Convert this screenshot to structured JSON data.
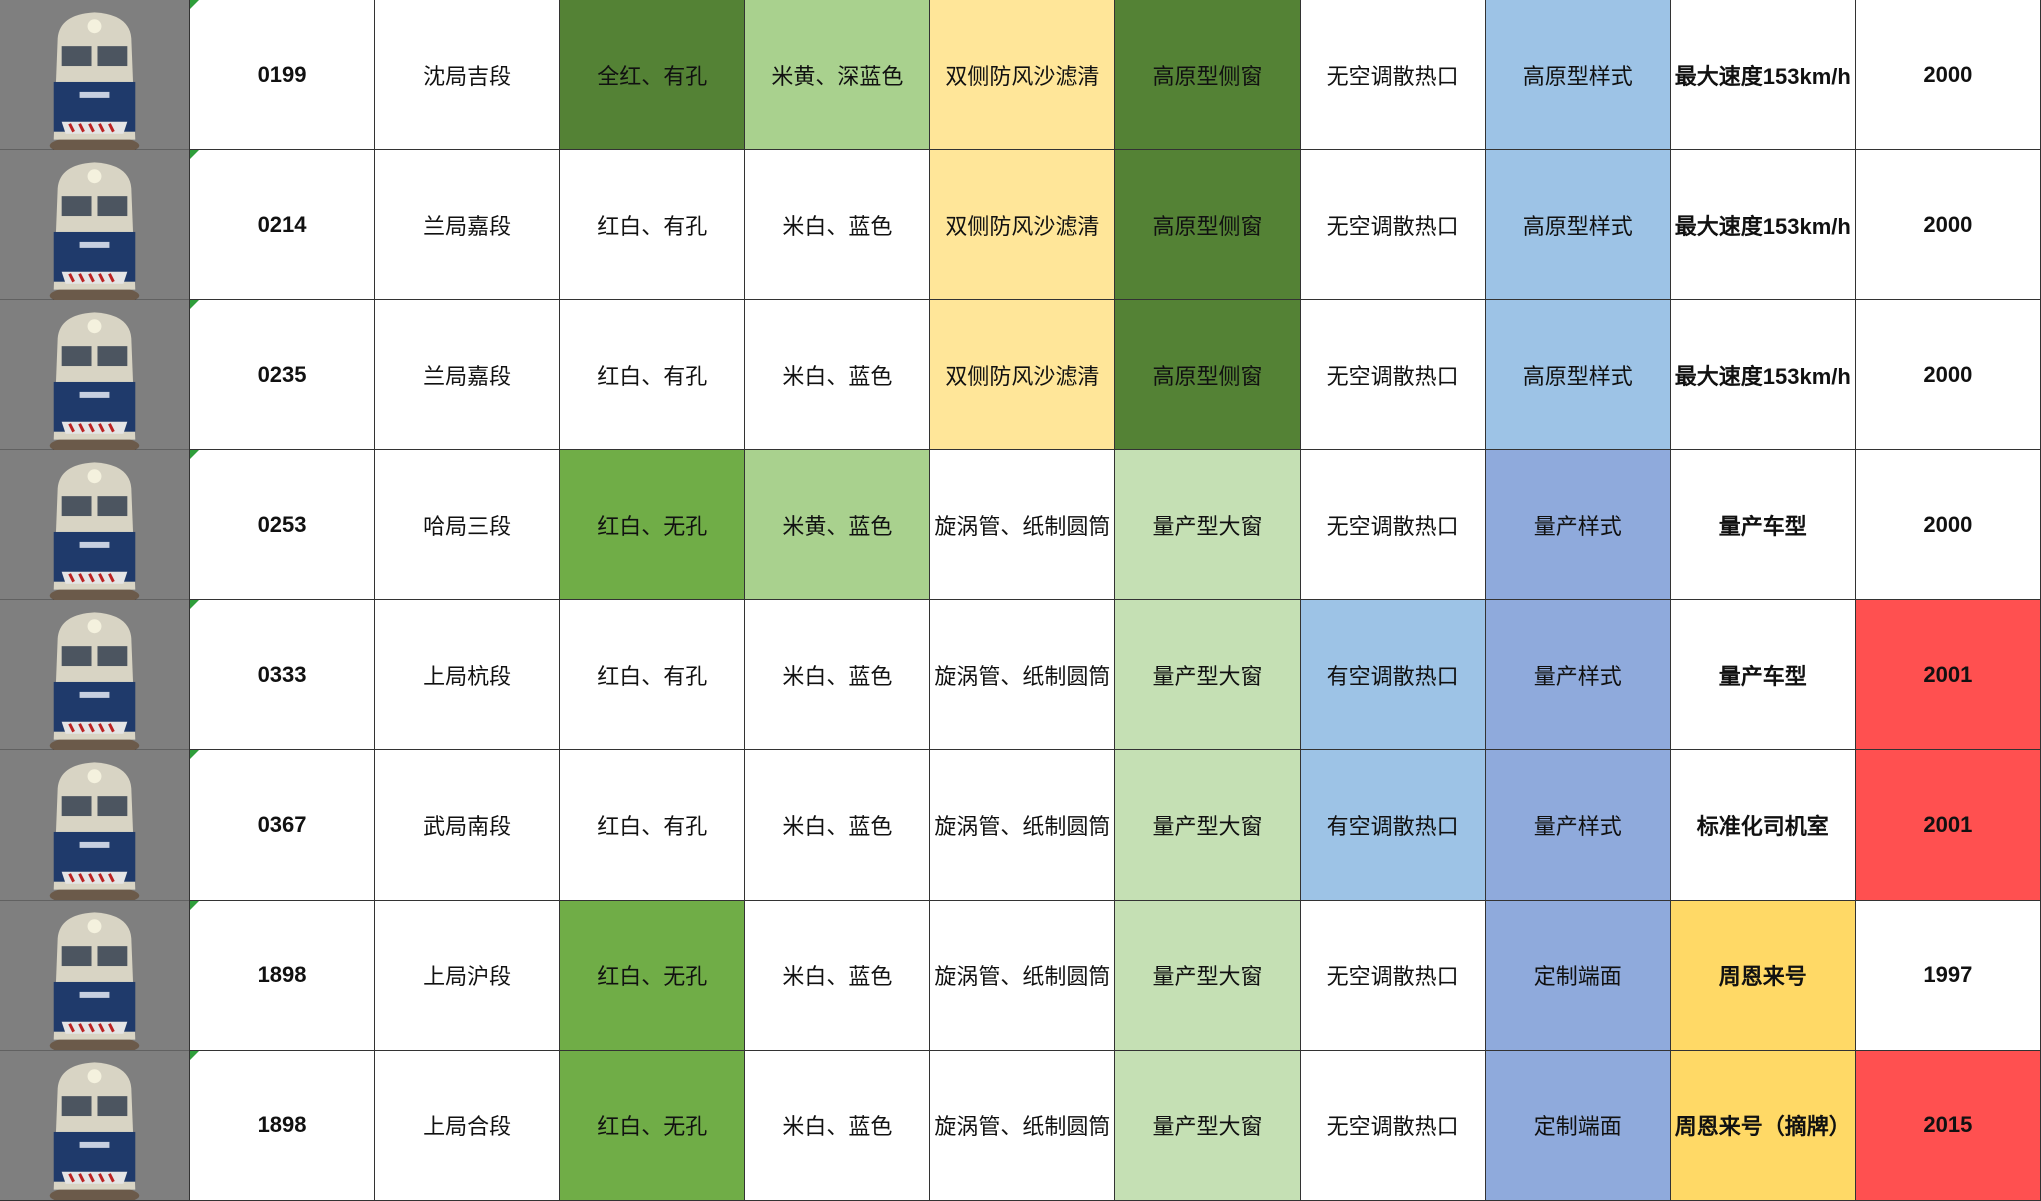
{
  "rows": [
    [
      "0199",
      "沈局吉段",
      "全红、有孔",
      "米黄、深蓝色",
      "双侧防风沙滤清",
      "高原型侧窗",
      "无空调散热口",
      "高原型样式",
      "最大速度153km/h",
      "2000"
    ],
    [
      "0214",
      "兰局嘉段",
      "红白、有孔",
      "米白、蓝色",
      "双侧防风沙滤清",
      "高原型侧窗",
      "无空调散热口",
      "高原型样式",
      "最大速度153km/h",
      "2000"
    ],
    [
      "0235",
      "兰局嘉段",
      "红白、有孔",
      "米白、蓝色",
      "双侧防风沙滤清",
      "高原型侧窗",
      "无空调散热口",
      "高原型样式",
      "最大速度153km/h",
      "2000"
    ],
    [
      "0253",
      "哈局三段",
      "红白、无孔",
      "米黄、蓝色",
      "旋涡管、纸制圆筒",
      "量产型大窗",
      "无空调散热口",
      "量产样式",
      "量产车型",
      "2000"
    ],
    [
      "0333",
      "上局杭段",
      "红白、有孔",
      "米白、蓝色",
      "旋涡管、纸制圆筒",
      "量产型大窗",
      "有空调散热口",
      "量产样式",
      "量产车型",
      "2001"
    ],
    [
      "0367",
      "武局南段",
      "红白、有孔",
      "米白、蓝色",
      "旋涡管、纸制圆筒",
      "量产型大窗",
      "有空调散热口",
      "量产样式",
      "标准化司机室",
      "2001"
    ],
    [
      "1898",
      "上局沪段",
      "红白、无孔",
      "米白、蓝色",
      "旋涡管、纸制圆筒",
      "量产型大窗",
      "无空调散热口",
      "定制端面",
      "周恩来号",
      "1997"
    ],
    [
      "1898",
      "上局合段",
      "红白、无孔",
      "米白、蓝色",
      "旋涡管、纸制圆筒",
      "量产型大窗",
      "无空调散热口",
      "定制端面",
      "周恩来号（摘牌）",
      "2015"
    ]
  ]
}
